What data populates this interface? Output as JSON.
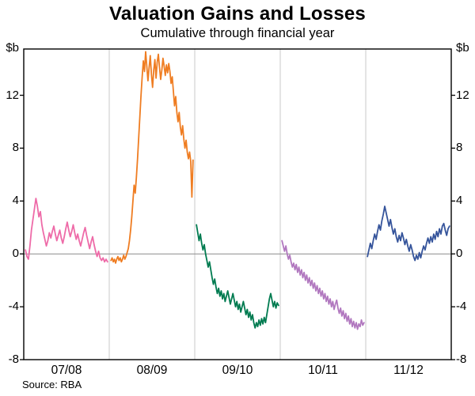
{
  "header": {
    "title": "Valuation Gains and Losses",
    "subtitle": "Cumulative through financial year"
  },
  "axis": {
    "unit_left": "$b",
    "unit_right": "$b"
  },
  "footer": {
    "source": "Source: RBA"
  },
  "chart_data": {
    "type": "line",
    "title": "Valuation Gains and Losses",
    "subtitle": "Cumulative through financial year",
    "ylabel": "$b",
    "ylim": [
      -8,
      15.5
    ],
    "yticks": [
      -8,
      -4,
      0,
      4,
      8,
      12
    ],
    "x_categories": [
      "07/08",
      "08/09",
      "09/10",
      "10/11",
      "11/12"
    ],
    "legend": "none",
    "grid": "vertical lines at financial-year boundaries; horizontal zero line",
    "colors": {
      "grid": "#c9c9c9",
      "zero_line": "#8c8c8c",
      "frame": "#000000"
    },
    "series": [
      {
        "name": "07/08",
        "color": "#ee6ba8",
        "values": [
          0.3,
          -0.2,
          -0.4,
          0.6,
          1.8,
          2.6,
          3.4,
          4.2,
          3.6,
          2.8,
          3.2,
          2.2,
          1.6,
          1.1,
          0.6,
          1.0,
          1.6,
          1.2,
          1.7,
          2.1,
          1.5,
          1.0,
          1.4,
          1.8,
          1.2,
          0.8,
          1.3,
          1.9,
          2.4,
          1.8,
          1.3,
          1.7,
          2.2,
          1.6,
          1.1,
          1.5,
          1.0,
          0.6,
          1.1,
          1.6,
          2.0,
          1.4,
          0.9,
          0.4,
          0.9,
          1.3,
          0.7,
          0.2,
          -0.2,
          0.2,
          -0.3,
          -0.5,
          -0.3,
          -0.6,
          -0.4,
          -0.6
        ]
      },
      {
        "name": "08/09",
        "color": "#ef7d22",
        "values": [
          -0.5,
          -0.3,
          -0.6,
          -0.4,
          -0.7,
          -0.4,
          -0.2,
          -0.5,
          -0.3,
          -0.6,
          -0.4,
          -0.1,
          -0.4,
          -0.2,
          0.1,
          0.4,
          1.0,
          1.8,
          2.8,
          4.0,
          5.2,
          4.6,
          5.8,
          7.2,
          8.8,
          10.4,
          12.0,
          13.4,
          14.6,
          13.8,
          15.3,
          14.2,
          13.1,
          14.1,
          15.0,
          13.6,
          12.6,
          13.9,
          14.7,
          13.3,
          14.5,
          15.1,
          14.1,
          13.2,
          13.9,
          14.8,
          14.2,
          13.5,
          14.3,
          13.7,
          14.4,
          13.8,
          12.9,
          13.4,
          12.3,
          11.2,
          11.9,
          10.7,
          10.0,
          10.7,
          9.6,
          9.0,
          9.7,
          8.7,
          8.0,
          8.6,
          7.7,
          7.2,
          7.7,
          7.0,
          4.3,
          7.1
        ]
      },
      {
        "name": "09/10",
        "color": "#007b50",
        "values": [
          2.2,
          1.6,
          1.0,
          1.5,
          0.8,
          0.3,
          0.7,
          0.0,
          -0.5,
          -1.0,
          -0.6,
          -1.2,
          -1.8,
          -2.3,
          -1.9,
          -2.5,
          -3.0,
          -2.6,
          -3.2,
          -2.8,
          -3.4,
          -3.0,
          -3.6,
          -3.2,
          -2.8,
          -3.3,
          -3.8,
          -3.4,
          -3.0,
          -3.5,
          -4.0,
          -3.6,
          -4.2,
          -3.8,
          -4.4,
          -4.0,
          -3.6,
          -4.1,
          -4.6,
          -4.2,
          -4.8,
          -4.4,
          -5.0,
          -4.6,
          -5.2,
          -5.6,
          -5.2,
          -5.5,
          -5.0,
          -5.4,
          -4.9,
          -5.3,
          -4.8,
          -5.2,
          -4.6,
          -4.0,
          -3.4,
          -3.0,
          -3.5,
          -4.0,
          -3.6,
          -4.1,
          -3.7,
          -3.9
        ]
      },
      {
        "name": "10/11",
        "color": "#b178bf",
        "values": [
          1.0,
          0.6,
          0.2,
          0.6,
          0.0,
          -0.4,
          -0.1,
          -0.6,
          -1.0,
          -0.7,
          -1.2,
          -0.8,
          -1.4,
          -1.0,
          -1.6,
          -1.2,
          -1.8,
          -1.4,
          -2.0,
          -1.6,
          -2.2,
          -1.8,
          -2.4,
          -2.0,
          -2.6,
          -2.2,
          -2.8,
          -2.4,
          -3.0,
          -2.6,
          -3.2,
          -2.8,
          -3.4,
          -3.0,
          -3.6,
          -3.2,
          -3.8,
          -3.4,
          -4.0,
          -3.6,
          -4.2,
          -3.8,
          -3.5,
          -4.1,
          -4.5,
          -4.1,
          -4.7,
          -4.3,
          -4.9,
          -4.5,
          -5.1,
          -4.7,
          -5.3,
          -4.9,
          -5.5,
          -5.1,
          -5.6,
          -5.2,
          -5.7,
          -5.3,
          -5.5,
          -5.0,
          -5.4,
          -5.2
        ]
      },
      {
        "name": "11/12",
        "color": "#35549b",
        "values": [
          -0.2,
          0.3,
          0.8,
          0.4,
          1.0,
          1.5,
          1.1,
          1.7,
          2.2,
          1.8,
          2.5,
          3.0,
          3.6,
          3.1,
          2.6,
          2.1,
          2.6,
          2.0,
          1.5,
          1.9,
          1.3,
          0.9,
          1.4,
          1.0,
          1.6,
          1.2,
          0.7,
          1.1,
          0.6,
          0.2,
          0.7,
          0.3,
          -0.2,
          -0.5,
          -0.1,
          -0.4,
          0.1,
          -0.3,
          0.2,
          0.6,
          0.3,
          0.8,
          1.2,
          0.8,
          1.3,
          0.9,
          1.5,
          1.1,
          1.7,
          1.3,
          1.9,
          1.5,
          2.1,
          2.3,
          1.8,
          1.4,
          1.9,
          2.1
        ]
      }
    ],
    "source": "Source: RBA"
  }
}
